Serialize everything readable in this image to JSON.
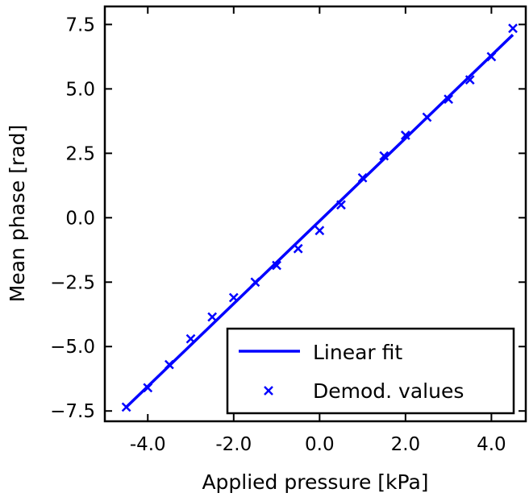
{
  "chart_data": {
    "type": "scatter",
    "title": "",
    "xlabel": "Applied pressure [kPa]",
    "ylabel": "Mean phase [rad]",
    "xlim": [
      -5.0,
      4.8
    ],
    "ylim": [
      -7.9,
      8.2
    ],
    "xticks": [
      -4.0,
      -2.0,
      0.0,
      2.0,
      4.0
    ],
    "xtick_labels": [
      "-4.0",
      "-2.0",
      "0.0",
      "2.0",
      "4.0"
    ],
    "yticks": [
      -7.5,
      -5.0,
      -2.5,
      0.0,
      2.5,
      5.0,
      7.5
    ],
    "ytick_labels": [
      "−7.5",
      "−5.0",
      "−2.5",
      "0.0",
      "2.5",
      "5.0",
      "7.5"
    ],
    "grid": false,
    "legend": {
      "placement": "lower-right",
      "entries": [
        "Linear fit",
        "Demod. values"
      ]
    },
    "series": [
      {
        "name": "Linear fit",
        "kind": "line",
        "color": "#0000ff",
        "x": [
          -4.5,
          4.5
        ],
        "y": [
          -7.35,
          7.1
        ]
      },
      {
        "name": "Demod. values",
        "kind": "scatter",
        "marker": "x",
        "color": "#0000ff",
        "x": [
          -4.5,
          -4.0,
          -3.5,
          -3.0,
          -2.5,
          -2.0,
          -1.5,
          -1.0,
          -0.5,
          0.0,
          0.5,
          1.0,
          1.5,
          2.0,
          2.5,
          3.0,
          3.5,
          4.0,
          4.5
        ],
        "y": [
          -7.35,
          -6.6,
          -5.7,
          -4.7,
          -3.85,
          -3.1,
          -2.5,
          -1.85,
          -1.2,
          -0.5,
          0.5,
          1.55,
          2.4,
          3.2,
          3.9,
          4.6,
          5.35,
          6.25,
          7.35
        ]
      }
    ]
  }
}
